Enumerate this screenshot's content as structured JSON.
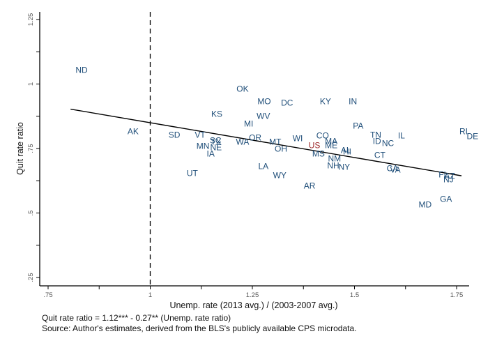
{
  "chart_data": {
    "type": "scatter",
    "title": "",
    "xlabel": "Unemp. rate (2013 avg.) / (2003-2007 avg.)",
    "ylabel": "Quit rate ratio",
    "xlim": [
      0.73,
      1.78
    ],
    "ylim": [
      0.22,
      1.28
    ],
    "x_ticks": [
      {
        "value": 0.75,
        "label": ".75"
      },
      {
        "value": 0.875,
        "label": ""
      },
      {
        "value": 1.0,
        "label": "1"
      },
      {
        "value": 1.125,
        "label": ""
      },
      {
        "value": 1.25,
        "label": "1.25"
      },
      {
        "value": 1.375,
        "label": ""
      },
      {
        "value": 1.5,
        "label": "1.5"
      },
      {
        "value": 1.625,
        "label": ""
      },
      {
        "value": 1.75,
        "label": "1.75"
      }
    ],
    "y_ticks": [
      {
        "value": 0.25,
        "label": ".25"
      },
      {
        "value": 0.375,
        "label": ""
      },
      {
        "value": 0.5,
        "label": ".5"
      },
      {
        "value": 0.625,
        "label": ""
      },
      {
        "value": 0.75,
        "label": ".75"
      },
      {
        "value": 0.875,
        "label": ""
      },
      {
        "value": 1.0,
        "label": "1"
      },
      {
        "value": 1.125,
        "label": ""
      },
      {
        "value": 1.25,
        "label": "1.25"
      }
    ],
    "grid": false,
    "reference_line": {
      "axis": "x",
      "value": 1.0,
      "style": "dashed"
    },
    "fit_line": {
      "intercept": 1.12,
      "slope": -0.27,
      "x_range": [
        0.805,
        1.762
      ]
    },
    "points": [
      {
        "label": "ND",
        "x": 0.832,
        "y": 1.055
      },
      {
        "label": "AK",
        "x": 0.958,
        "y": 0.818
      },
      {
        "label": "SD",
        "x": 1.059,
        "y": 0.804
      },
      {
        "label": "VT",
        "x": 1.122,
        "y": 0.804
      },
      {
        "label": "SC",
        "x": 1.16,
        "y": 0.782
      },
      {
        "label": "TX",
        "x": 1.161,
        "y": 0.777
      },
      {
        "label": "MN",
        "x": 1.129,
        "y": 0.761
      },
      {
        "label": "NE",
        "x": 1.161,
        "y": 0.755
      },
      {
        "label": "IA",
        "x": 1.148,
        "y": 0.731
      },
      {
        "label": "UT",
        "x": 1.103,
        "y": 0.655
      },
      {
        "label": "KS",
        "x": 1.163,
        "y": 0.885
      },
      {
        "label": "OK",
        "x": 1.226,
        "y": 0.982
      },
      {
        "label": "MO",
        "x": 1.279,
        "y": 0.934
      },
      {
        "label": "DC",
        "x": 1.335,
        "y": 0.928
      },
      {
        "label": "WV",
        "x": 1.277,
        "y": 0.877
      },
      {
        "label": "MI",
        "x": 1.241,
        "y": 0.847
      },
      {
        "label": "OR",
        "x": 1.257,
        "y": 0.793
      },
      {
        "label": "WA",
        "x": 1.226,
        "y": 0.777
      },
      {
        "label": "MT",
        "x": 1.306,
        "y": 0.777
      },
      {
        "label": "OH",
        "x": 1.32,
        "y": 0.75
      },
      {
        "label": "WI",
        "x": 1.361,
        "y": 0.791
      },
      {
        "label": "LA",
        "x": 1.277,
        "y": 0.682
      },
      {
        "label": "WY",
        "x": 1.317,
        "y": 0.647
      },
      {
        "label": "US",
        "x": 1.402,
        "y": 0.764,
        "highlight": true
      },
      {
        "label": "CO",
        "x": 1.422,
        "y": 0.801
      },
      {
        "label": "MA",
        "x": 1.443,
        "y": 0.78
      },
      {
        "label": "ME",
        "x": 1.443,
        "y": 0.764
      },
      {
        "label": "MS",
        "x": 1.412,
        "y": 0.731
      },
      {
        "label": "NM",
        "x": 1.451,
        "y": 0.712
      },
      {
        "label": "NH",
        "x": 1.448,
        "y": 0.685
      },
      {
        "label": "NY",
        "x": 1.475,
        "y": 0.68
      },
      {
        "label": "AL",
        "x": 1.479,
        "y": 0.745
      },
      {
        "label": "HI",
        "x": 1.482,
        "y": 0.739
      },
      {
        "label": "AR",
        "x": 1.39,
        "y": 0.607
      },
      {
        "label": "KY",
        "x": 1.429,
        "y": 0.934
      },
      {
        "label": "IN",
        "x": 1.496,
        "y": 0.934
      },
      {
        "label": "PA",
        "x": 1.509,
        "y": 0.839
      },
      {
        "label": "TN",
        "x": 1.552,
        "y": 0.804
      },
      {
        "label": "ID",
        "x": 1.555,
        "y": 0.78
      },
      {
        "label": "NC",
        "x": 1.582,
        "y": 0.772
      },
      {
        "label": "IL",
        "x": 1.615,
        "y": 0.801
      },
      {
        "label": "CT",
        "x": 1.562,
        "y": 0.726
      },
      {
        "label": "CA",
        "x": 1.593,
        "y": 0.674
      },
      {
        "label": "VA",
        "x": 1.6,
        "y": 0.669
      },
      {
        "label": "FL",
        "x": 1.718,
        "y": 0.65
      },
      {
        "label": "AZ",
        "x": 1.733,
        "y": 0.645
      },
      {
        "label": "NJ",
        "x": 1.73,
        "y": 0.631
      },
      {
        "label": "MD",
        "x": 1.673,
        "y": 0.534
      },
      {
        "label": "GA",
        "x": 1.724,
        "y": 0.555
      },
      {
        "label": "RI",
        "x": 1.767,
        "y": 0.818
      },
      {
        "label": "DE",
        "x": 1.789,
        "y": 0.799
      }
    ],
    "colors": {
      "state": "#1f4e79",
      "highlight": "#9e2a2b",
      "line": "#000000"
    }
  },
  "notes": {
    "equation": "Quit rate ratio = 1.12*** - 0.27** (Unemp. rate ratio)",
    "source": "Source: Author's estimates, derived from the BLS's publicly available CPS microdata."
  }
}
